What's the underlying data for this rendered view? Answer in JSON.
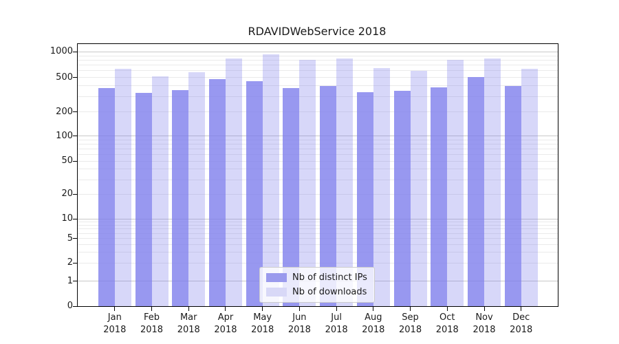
{
  "title": "RDAVIDWebService 2018",
  "chart_data": {
    "type": "bar",
    "title": "RDAVIDWebService 2018",
    "categories": [
      "Jan 2018",
      "Feb 2018",
      "Mar 2018",
      "Apr 2018",
      "May 2018",
      "Jun 2018",
      "Jul 2018",
      "Aug 2018",
      "Sep 2018",
      "Oct 2018",
      "Nov 2018",
      "Dec 2018"
    ],
    "series": [
      {
        "name": "Nb of distinct IPs",
        "legend_color": "#9a9aed",
        "bar_fill": "rgba(123,123,236,0.78)",
        "values": [
          375,
          330,
          360,
          480,
          450,
          380,
          400,
          340,
          350,
          385,
          510,
          400
        ]
      },
      {
        "name": "Nb of downloads",
        "legend_color": "#d8d8f7",
        "bar_fill": "rgba(123,123,236,0.30)",
        "values": [
          630,
          520,
          580,
          830,
          930,
          800,
          830,
          640,
          600,
          800,
          845,
          630
        ]
      }
    ],
    "xlabel": "",
    "ylabel": "",
    "yscale": "symlog",
    "yticks": [
      0,
      1,
      2,
      5,
      10,
      20,
      50,
      100,
      200,
      500,
      1000
    ],
    "ylim": [
      0,
      1270
    ],
    "grid": true,
    "legend_position": "lower center"
  },
  "colors": {
    "grid_major": "#c8c8c8",
    "grid_minor": "#eaeaea",
    "axis": "#000000",
    "text": "#1a1a1a",
    "background": "#ffffff"
  }
}
